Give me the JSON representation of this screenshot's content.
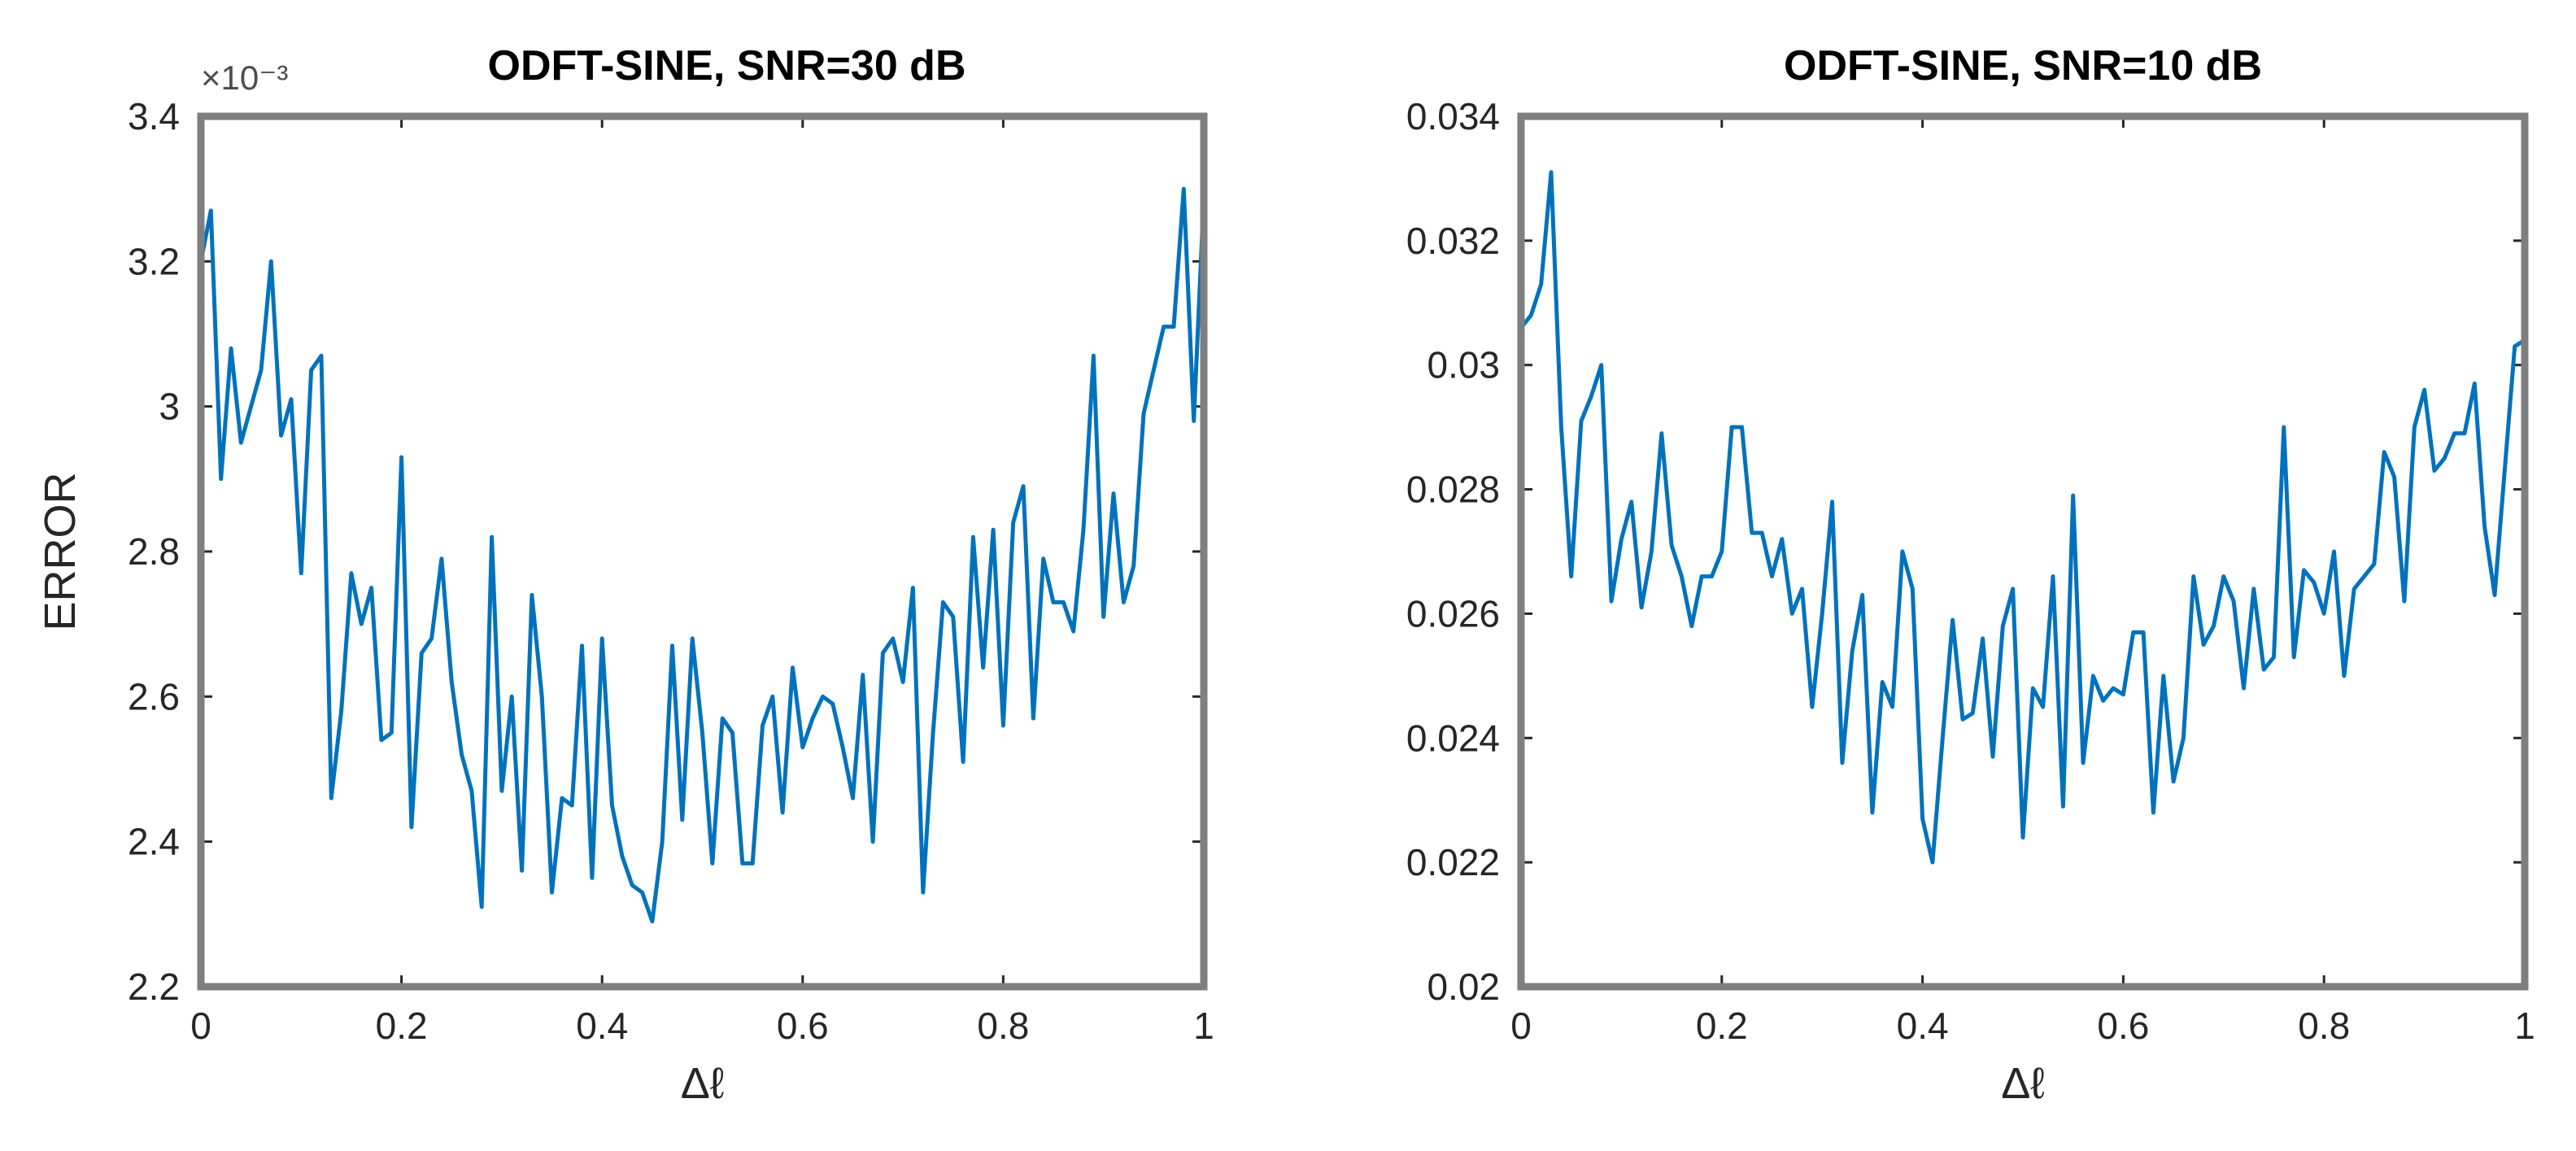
{
  "chart_data": [
    {
      "type": "line",
      "title": "ODFT-SINE, SNR=30 dB",
      "xlabel": "Δℓ",
      "ylabel": "ERROR",
      "y_exponent": "×10⁻³",
      "xlim": [
        0,
        1
      ],
      "ylim": [
        2.2,
        3.4
      ],
      "xticks": [
        0,
        0.2,
        0.4,
        0.6,
        0.8,
        1
      ],
      "xtick_labels": [
        "0",
        "0.2",
        "0.4",
        "0.6",
        "0.8",
        "1"
      ],
      "yticks": [
        2.2,
        2.4,
        2.6,
        2.8,
        3.0,
        3.2,
        3.4
      ],
      "ytick_labels": [
        "2.2",
        "2.4",
        "2.6",
        "2.8",
        "3",
        "3.2",
        "3.4"
      ],
      "grid": false,
      "color": "#0072bd",
      "series": [
        {
          "x": [
            0,
            0.01,
            0.02,
            0.03,
            0.04,
            0.05,
            0.06,
            0.07,
            0.08,
            0.09,
            0.1,
            0.11,
            0.12,
            0.13,
            0.14,
            0.15,
            0.16,
            0.17,
            0.18,
            0.19,
            0.2,
            0.21,
            0.22,
            0.23,
            0.24,
            0.25,
            0.26,
            0.27,
            0.28,
            0.29,
            0.3,
            0.31,
            0.32,
            0.33,
            0.34,
            0.35,
            0.36,
            0.37,
            0.38,
            0.39,
            0.4,
            0.41,
            0.42,
            0.43,
            0.44,
            0.45,
            0.46,
            0.47,
            0.48,
            0.49,
            0.5,
            0.51,
            0.52,
            0.53,
            0.54,
            0.55,
            0.56,
            0.57,
            0.58,
            0.59,
            0.6,
            0.61,
            0.62,
            0.63,
            0.64,
            0.65,
            0.66,
            0.67,
            0.68,
            0.69,
            0.7,
            0.71,
            0.72,
            0.73,
            0.74,
            0.75,
            0.76,
            0.77,
            0.78,
            0.79,
            0.8,
            0.81,
            0.82,
            0.83,
            0.84,
            0.85,
            0.86,
            0.87,
            0.88,
            0.89,
            0.9,
            0.91,
            0.92,
            0.93,
            0.94,
            0.95,
            0.96,
            0.97,
            0.98,
            0.99,
            1.0
          ],
          "values": [
            3.2,
            3.27,
            2.9,
            3.08,
            2.95,
            3.0,
            3.05,
            3.2,
            2.96,
            3.01,
            2.77,
            3.05,
            3.07,
            2.46,
            2.58,
            2.77,
            2.7,
            2.75,
            2.54,
            2.55,
            2.93,
            2.42,
            2.66,
            2.68,
            2.79,
            2.62,
            2.52,
            2.47,
            2.31,
            2.82,
            2.47,
            2.6,
            2.36,
            2.74,
            2.6,
            2.33,
            2.46,
            2.45,
            2.67,
            2.35,
            2.68,
            2.45,
            2.38,
            2.34,
            2.33,
            2.29,
            2.4,
            2.67,
            2.43,
            2.68,
            2.55,
            2.37,
            2.57,
            2.55,
            2.37,
            2.37,
            2.56,
            2.6,
            2.44,
            2.64,
            2.53,
            2.57,
            2.6,
            2.59,
            2.53,
            2.46,
            2.63,
            2.4,
            2.66,
            2.68,
            2.62,
            2.75,
            2.33,
            2.55,
            2.73,
            2.71,
            2.51,
            2.82,
            2.64,
            2.83,
            2.56,
            2.84,
            2.89,
            2.57,
            2.79,
            2.73,
            2.73,
            2.69,
            2.83,
            3.07,
            2.71,
            2.88,
            2.73,
            2.78,
            2.99,
            3.05,
            3.11,
            3.11,
            3.3,
            2.98,
            3.29
          ]
        }
      ]
    },
    {
      "type": "line",
      "title": "ODFT-SINE, SNR=10 dB",
      "xlabel": "Δℓ",
      "ylabel": "",
      "xlim": [
        0,
        1
      ],
      "ylim": [
        0.02,
        0.034
      ],
      "xticks": [
        0,
        0.2,
        0.4,
        0.6,
        0.8,
        1
      ],
      "xtick_labels": [
        "0",
        "0.2",
        "0.4",
        "0.6",
        "0.8",
        "1"
      ],
      "yticks": [
        0.02,
        0.022,
        0.024,
        0.026,
        0.028,
        0.03,
        0.032,
        0.034
      ],
      "ytick_labels": [
        "0.02",
        "0.022",
        "0.024",
        "0.026",
        "0.028",
        "0.03",
        "0.032",
        "0.034"
      ],
      "grid": false,
      "color": "#0072bd",
      "series": [
        {
          "x": [
            0,
            0.01,
            0.02,
            0.03,
            0.04,
            0.05,
            0.06,
            0.07,
            0.08,
            0.09,
            0.1,
            0.11,
            0.12,
            0.13,
            0.14,
            0.15,
            0.16,
            0.17,
            0.18,
            0.19,
            0.2,
            0.21,
            0.22,
            0.23,
            0.24,
            0.25,
            0.26,
            0.27,
            0.28,
            0.29,
            0.3,
            0.31,
            0.32,
            0.33,
            0.34,
            0.35,
            0.36,
            0.37,
            0.38,
            0.39,
            0.4,
            0.41,
            0.42,
            0.43,
            0.44,
            0.45,
            0.46,
            0.47,
            0.48,
            0.49,
            0.5,
            0.51,
            0.52,
            0.53,
            0.54,
            0.55,
            0.56,
            0.57,
            0.58,
            0.59,
            0.6,
            0.61,
            0.62,
            0.63,
            0.64,
            0.65,
            0.66,
            0.67,
            0.68,
            0.69,
            0.7,
            0.71,
            0.72,
            0.73,
            0.74,
            0.75,
            0.76,
            0.77,
            0.78,
            0.79,
            0.8,
            0.81,
            0.82,
            0.83,
            0.84,
            0.85,
            0.86,
            0.87,
            0.88,
            0.89,
            0.9,
            0.91,
            0.92,
            0.93,
            0.94,
            0.95,
            0.96,
            0.97,
            0.98,
            0.99,
            1.0
          ],
          "values": [
            0.0306,
            0.0308,
            0.0313,
            0.0331,
            0.029,
            0.0266,
            0.0291,
            0.0295,
            0.03,
            0.0262,
            0.0272,
            0.0278,
            0.0261,
            0.027,
            0.0289,
            0.0271,
            0.0266,
            0.0258,
            0.0266,
            0.0266,
            0.027,
            0.029,
            0.029,
            0.0273,
            0.0273,
            0.0266,
            0.0272,
            0.026,
            0.0264,
            0.0245,
            0.026,
            0.0278,
            0.0236,
            0.0254,
            0.0263,
            0.0228,
            0.0249,
            0.0245,
            0.027,
            0.0264,
            0.0227,
            0.022,
            0.024,
            0.0259,
            0.0243,
            0.0244,
            0.0256,
            0.0237,
            0.0258,
            0.0264,
            0.0224,
            0.0248,
            0.0245,
            0.0266,
            0.0229,
            0.0279,
            0.0236,
            0.025,
            0.0246,
            0.0248,
            0.0247,
            0.0257,
            0.0257,
            0.0228,
            0.025,
            0.0233,
            0.024,
            0.0266,
            0.0255,
            0.0258,
            0.0266,
            0.0262,
            0.0248,
            0.0264,
            0.0251,
            0.0253,
            0.029,
            0.0253,
            0.0267,
            0.0265,
            0.026,
            0.027,
            0.025,
            0.0264,
            0.0266,
            0.0268,
            0.0286,
            0.0282,
            0.0262,
            0.029,
            0.0296,
            0.0283,
            0.0285,
            0.0289,
            0.0289,
            0.0297,
            0.0274,
            0.0263,
            0.0283,
            0.0303,
            0.0304
          ]
        }
      ]
    }
  ]
}
